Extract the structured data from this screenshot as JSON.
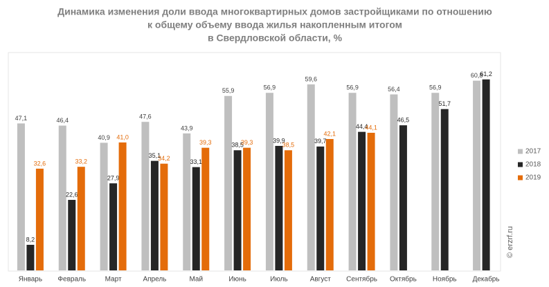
{
  "chart_data": {
    "type": "bar",
    "title": [
      "Динамика изменения доли ввода многоквартирных домов застройщиками по отношению",
      "к общему объему ввода жилья накопленным итогом",
      "в Свердловской области, %"
    ],
    "categories": [
      "Январь",
      "Февраль",
      "Март",
      "Апрель",
      "Май",
      "Июнь",
      "Июль",
      "Август",
      "Сентябрь",
      "Октябрь",
      "Ноябрь",
      "Декабрь"
    ],
    "series": [
      {
        "name": "2017",
        "color": "#bfbfbf",
        "label_color": "#404040",
        "values": [
          47.1,
          46.4,
          40.9,
          47.6,
          43.9,
          55.9,
          56.9,
          59.6,
          56.9,
          56.4,
          56.9,
          60.8
        ],
        "value_labels": [
          "47,1",
          "46,4",
          "40,9",
          "47,6",
          "43,9",
          "55,9",
          "56,9",
          "59,6",
          "56,9",
          "56,4",
          "56,9",
          "60,8"
        ]
      },
      {
        "name": "2018",
        "color": "#262626",
        "label_color": "#262626",
        "values": [
          8.2,
          22.6,
          27.9,
          35.1,
          33.1,
          38.5,
          39.9,
          39.7,
          44.4,
          46.5,
          51.7,
          61.2
        ],
        "value_labels": [
          "8,2",
          "22,6",
          "27,9",
          "35,1",
          "33,1",
          "38,5",
          "39,9",
          "39,7",
          "44,4",
          "46,5",
          "51,7",
          "61,2"
        ]
      },
      {
        "name": "2019",
        "color": "#e46c0a",
        "label_color": "#e46c0a",
        "values": [
          32.6,
          33.2,
          41.0,
          34.2,
          39.3,
          39.3,
          38.5,
          42.1,
          44.1,
          null,
          null,
          null
        ],
        "value_labels": [
          "32,6",
          "33,2",
          "41,0",
          "34,2",
          "39,3",
          "39,3",
          "38,5",
          "42,1",
          "44,1",
          null,
          null,
          null
        ]
      }
    ],
    "ylim": [
      0,
      80
    ],
    "watermark": "© erzrf.ru"
  }
}
